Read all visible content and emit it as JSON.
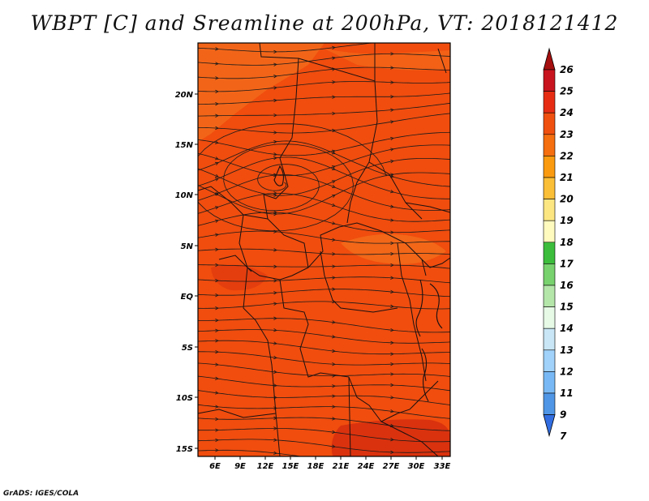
{
  "title": "WBPT [C] and Sreamline at 200hPa, VT: 2018121412",
  "credit": "GrADS: IGES/COLA",
  "map": {
    "lat_labels": [
      "20N",
      "15N",
      "10N",
      "5N",
      "EQ",
      "5S",
      "10S",
      "15S"
    ],
    "lon_labels": [
      "6E",
      "9E",
      "12E",
      "15E",
      "18E",
      "21E",
      "24E",
      "27E",
      "30E",
      "33E"
    ],
    "field_color": "#f04d0e",
    "field_light_color": "#f26a1a",
    "field_dark_color": "#d7300e",
    "streamline_color": "#1a1a1a",
    "border_color": "#1a1010"
  },
  "colorbar": {
    "labels": [
      "26",
      "25",
      "24",
      "23",
      "22",
      "21",
      "20",
      "19",
      "18",
      "17",
      "16",
      "15",
      "14",
      "13",
      "12",
      "11",
      "9",
      "7"
    ],
    "colors": [
      "#a50f0f",
      "#c8141e",
      "#e62d14",
      "#f0500f",
      "#f56e0f",
      "#fa9b0f",
      "#fbbe37",
      "#fce682",
      "#fffabe",
      "#3cbe3c",
      "#78d26e",
      "#b4e6aa",
      "#e6fae6",
      "#c8e6f5",
      "#a0d2fa",
      "#78b9f5",
      "#5096e6",
      "#326ee1"
    ]
  }
}
